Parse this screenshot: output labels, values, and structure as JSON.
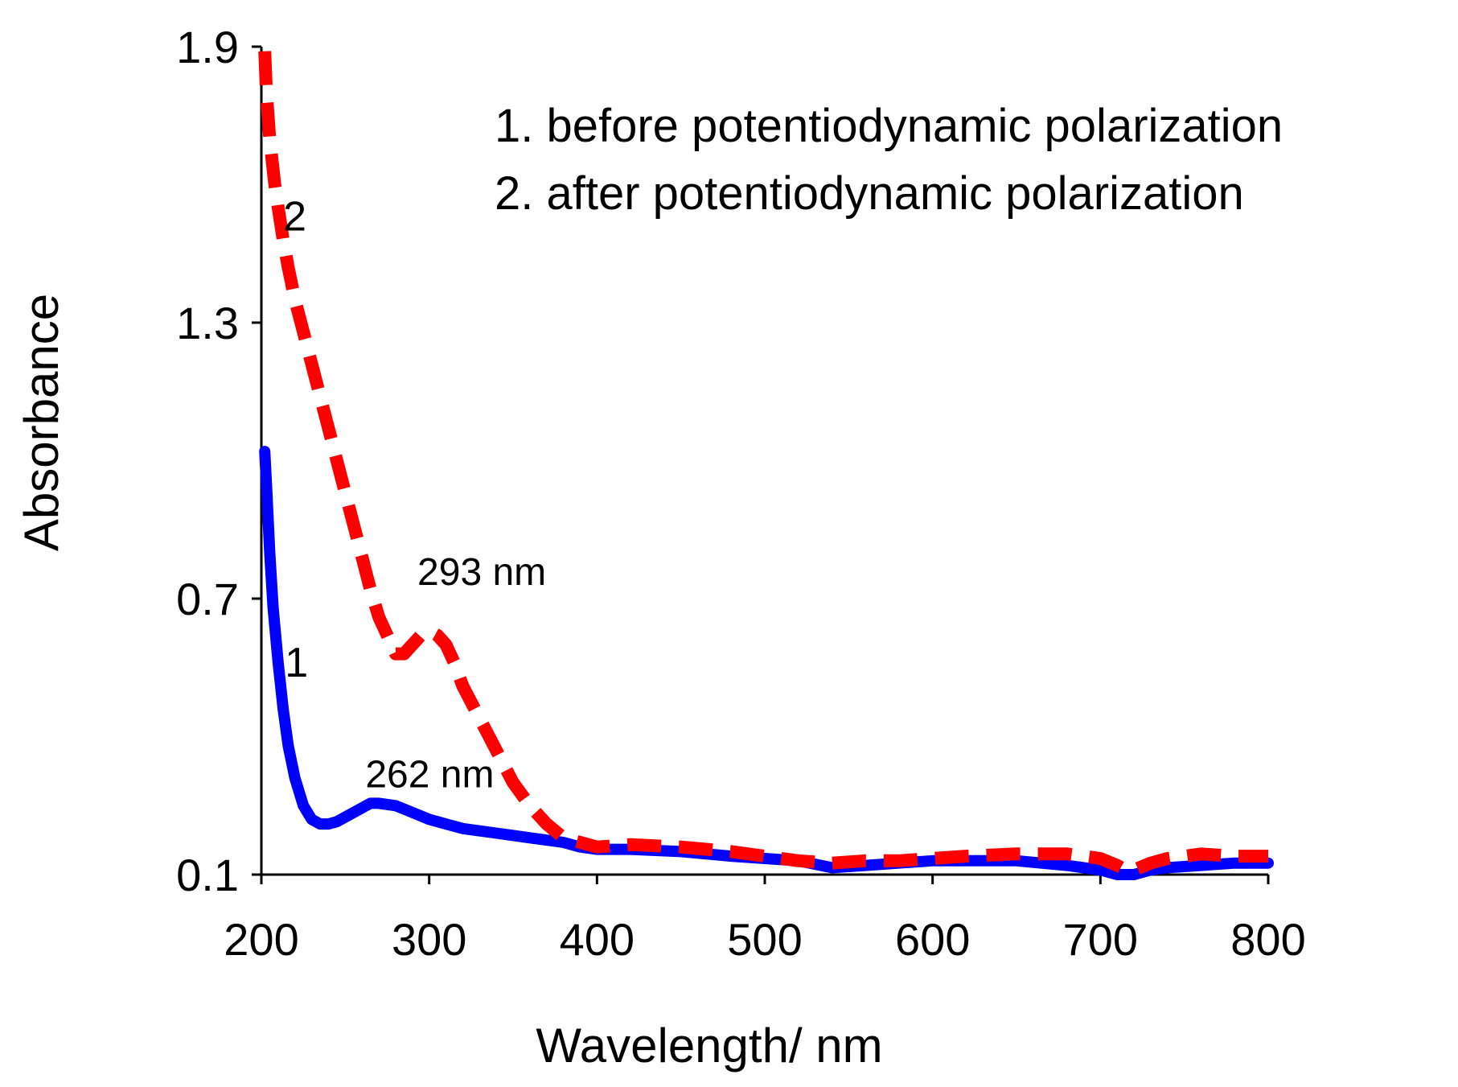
{
  "chart_data": {
    "type": "line",
    "xlabel": "Wavelength/ nm",
    "ylabel": "Absorbance",
    "xlim": [
      200,
      800
    ],
    "ylim": [
      0.1,
      1.9
    ],
    "xticks": [
      200,
      300,
      400,
      500,
      600,
      700,
      800
    ],
    "xtick_labels": [
      "200",
      "300",
      "400",
      "500",
      "600",
      "700",
      "800"
    ],
    "yticks": [
      0.1,
      0.7,
      1.3,
      1.9
    ],
    "ytick_labels": [
      "0.1",
      "0.7",
      "1.3",
      "1.9"
    ],
    "grid": false,
    "legend": {
      "placement": "top-right",
      "entries": [
        "1. before potentiodynamic polarization",
        "2. after potentiodynamic polarization"
      ]
    },
    "annotations": [
      {
        "text": "293 nm",
        "x": 293,
        "y": 0.73
      },
      {
        "text": "262 nm",
        "x": 262,
        "y": 0.29
      }
    ],
    "curve_labels": [
      {
        "text": "1",
        "x": 214,
        "y": 0.53
      },
      {
        "text": "2",
        "x": 213,
        "y": 1.5
      }
    ],
    "series": [
      {
        "name": "1",
        "color": "#0000ff",
        "style": "solid",
        "x": [
          202,
          203,
          205,
          207,
          210,
          213,
          216,
          220,
          225,
          230,
          235,
          240,
          245,
          250,
          255,
          260,
          265,
          270,
          280,
          290,
          300,
          310,
          320,
          340,
          360,
          380,
          390,
          400,
          420,
          450,
          480,
          500,
          520,
          540,
          560,
          580,
          600,
          620,
          650,
          680,
          700,
          710,
          720,
          730,
          740,
          760,
          780,
          800
        ],
        "y": [
          1.02,
          0.95,
          0.8,
          0.68,
          0.56,
          0.46,
          0.38,
          0.31,
          0.25,
          0.22,
          0.21,
          0.21,
          0.215,
          0.225,
          0.235,
          0.245,
          0.255,
          0.255,
          0.25,
          0.235,
          0.22,
          0.21,
          0.2,
          0.19,
          0.18,
          0.17,
          0.16,
          0.155,
          0.155,
          0.15,
          0.14,
          0.135,
          0.13,
          0.115,
          0.12,
          0.125,
          0.13,
          0.13,
          0.13,
          0.12,
          0.11,
          0.1,
          0.1,
          0.11,
          0.115,
          0.12,
          0.125,
          0.125
        ]
      },
      {
        "name": "2",
        "color": "#ff0000",
        "style": "dashed",
        "x": [
          202,
          203,
          205,
          208,
          210,
          213,
          216,
          220,
          225,
          230,
          235,
          240,
          245,
          250,
          255,
          260,
          265,
          270,
          275,
          280,
          285,
          290,
          295,
          300,
          305,
          310,
          315,
          320,
          330,
          340,
          350,
          360,
          370,
          380,
          390,
          400,
          420,
          450,
          480,
          500,
          520,
          540,
          560,
          580,
          600,
          620,
          650,
          680,
          700,
          710,
          715,
          720,
          730,
          740,
          760,
          780,
          800
        ],
        "y": [
          1.89,
          1.8,
          1.7,
          1.6,
          1.55,
          1.48,
          1.42,
          1.35,
          1.28,
          1.21,
          1.14,
          1.07,
          1.0,
          0.93,
          0.86,
          0.79,
          0.72,
          0.66,
          0.62,
          0.58,
          0.58,
          0.6,
          0.62,
          0.63,
          0.62,
          0.6,
          0.56,
          0.51,
          0.44,
          0.37,
          0.3,
          0.25,
          0.21,
          0.18,
          0.17,
          0.16,
          0.165,
          0.16,
          0.15,
          0.14,
          0.13,
          0.125,
          0.13,
          0.13,
          0.135,
          0.14,
          0.145,
          0.145,
          0.135,
          0.12,
          0.11,
          0.11,
          0.125,
          0.135,
          0.145,
          0.14,
          0.14
        ]
      }
    ]
  }
}
